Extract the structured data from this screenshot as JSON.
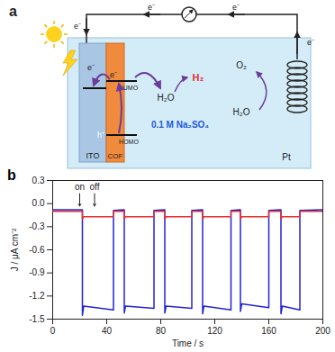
{
  "diagram": {
    "panel_label": "a",
    "electron": "e⁻",
    "hole": "h⁺",
    "ito": "ITO",
    "cof": "COF",
    "lumo": "LUMO",
    "homo": "HOMO",
    "water": "H₂O",
    "hydrogen": "H₂",
    "oxygen": "O₂",
    "electrolyte": "0.1 M Na₂SO₄",
    "counter_electrode": "Pt"
  },
  "chart_data": {
    "type": "line",
    "title": "b",
    "x_label": "Time / s",
    "y_label": "J / μA cm⁻²",
    "x": [
      0,
      22,
      22,
      23,
      45,
      45,
      53,
      53,
      54,
      75,
      75,
      83,
      83,
      84,
      103,
      103,
      111,
      111,
      112,
      132,
      132,
      139,
      139,
      140,
      160,
      160,
      169,
      169,
      170,
      183,
      183,
      200
    ],
    "series": [
      {
        "color": "#2323d8",
        "values": [
          -0.08,
          -0.08,
          -1.45,
          -1.33,
          -1.38,
          -0.09,
          -0.08,
          -1.42,
          -1.33,
          -1.36,
          -0.09,
          -0.08,
          -1.42,
          -1.33,
          -1.36,
          -0.09,
          -0.08,
          -1.43,
          -1.33,
          -1.38,
          -0.09,
          -0.08,
          -1.4,
          -1.3,
          -1.35,
          -0.09,
          -0.08,
          -1.43,
          -1.33,
          -1.38,
          -0.09,
          -0.08
        ]
      },
      {
        "color": "#e8302f",
        "values": [
          -0.1,
          -0.1,
          -0.2,
          -0.17,
          -0.17,
          -0.1,
          -0.1,
          -0.2,
          -0.17,
          -0.17,
          -0.1,
          -0.1,
          -0.2,
          -0.17,
          -0.17,
          -0.1,
          -0.1,
          -0.2,
          -0.17,
          -0.17,
          -0.1,
          -0.1,
          -0.2,
          -0.17,
          -0.17,
          -0.1,
          -0.1,
          -0.2,
          -0.17,
          -0.17,
          -0.1,
          -0.1
        ]
      }
    ],
    "xlim": [
      0,
      200
    ],
    "xticks": [
      0,
      40,
      80,
      120,
      160,
      200
    ],
    "ylim": [
      -1.5,
      0.3
    ],
    "yticks": [
      0.3,
      {
        "value": 0,
        "label": "0.0"
      },
      -0.3,
      -0.6,
      -0.9,
      -1.2,
      -1.5
    ],
    "annotations": [
      {
        "text": "on",
        "x": 20,
        "y": 0.22
      },
      {
        "text": "off",
        "x": 31,
        "y": 0.22
      }
    ],
    "grid": false
  }
}
